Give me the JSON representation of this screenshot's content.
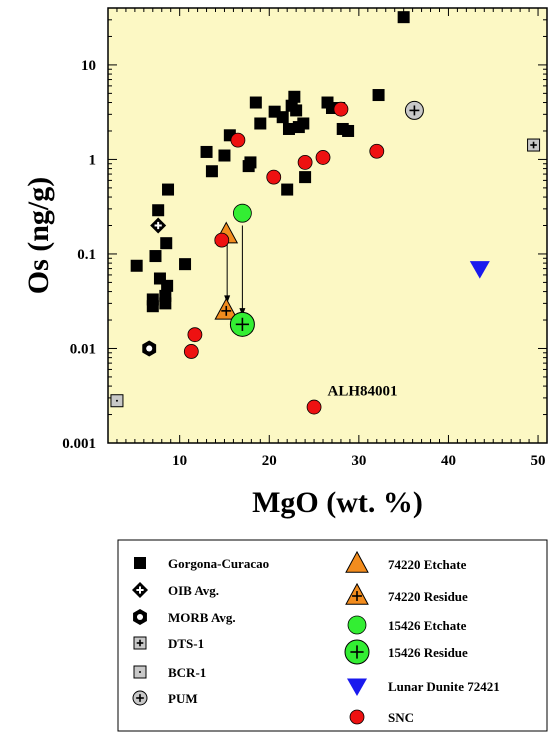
{
  "chart_data": {
    "type": "scatter",
    "xlabel": "MgO (wt. %)",
    "ylabel": "Os (ng/g)",
    "xlim": [
      2,
      51
    ],
    "ylim": [
      0.001,
      40
    ],
    "y_scale": "log",
    "x_ticks": [
      "10",
      "20",
      "30",
      "40",
      "50"
    ],
    "y_ticks": [
      "0.001",
      "0.01",
      "0.1",
      "1",
      "10"
    ],
    "grid": false,
    "plot_background": "#fcf8c4",
    "annotations": [
      {
        "text": "ALH84001",
        "x": 26.5,
        "y": 0.0032
      }
    ],
    "arrows": [
      {
        "from": [
          15.3,
          0.135
        ],
        "to": [
          15.3,
          0.03
        ]
      },
      {
        "from": [
          17.0,
          0.2
        ],
        "to": [
          17.0,
          0.022
        ]
      }
    ],
    "series": [
      {
        "name": "Gorgona-Curacao",
        "marker": "square",
        "color": "#000000",
        "points": [
          [
            5.2,
            0.075
          ],
          [
            7.0,
            0.033
          ],
          [
            7.0,
            0.028
          ],
          [
            7.3,
            0.095
          ],
          [
            7.6,
            0.29
          ],
          [
            7.8,
            0.055
          ],
          [
            8.4,
            0.03
          ],
          [
            8.4,
            0.036
          ],
          [
            8.6,
            0.046
          ],
          [
            8.5,
            0.13
          ],
          [
            8.7,
            0.48
          ],
          [
            10.6,
            0.078
          ],
          [
            13.0,
            1.2
          ],
          [
            13.6,
            0.75
          ],
          [
            15.0,
            1.1
          ],
          [
            15.6,
            1.8
          ],
          [
            17.7,
            0.85
          ],
          [
            17.9,
            0.93
          ],
          [
            18.5,
            4.0
          ],
          [
            19.0,
            2.4
          ],
          [
            20.6,
            3.2
          ],
          [
            21.5,
            2.8
          ],
          [
            22.0,
            0.48
          ],
          [
            22.2,
            2.1
          ],
          [
            22.5,
            3.7
          ],
          [
            22.8,
            4.6
          ],
          [
            23.0,
            3.3
          ],
          [
            23.3,
            2.2
          ],
          [
            23.8,
            2.4
          ],
          [
            24.0,
            0.65
          ],
          [
            26.5,
            4.0
          ],
          [
            27.0,
            3.5
          ],
          [
            27.8,
            3.5
          ],
          [
            28.2,
            2.1
          ],
          [
            28.8,
            2.0
          ],
          [
            32.2,
            4.8
          ],
          [
            35.0,
            32.0
          ]
        ]
      },
      {
        "name": "OIB Avg.",
        "marker": "diamond-cross",
        "color": "#000000",
        "points": [
          [
            7.6,
            0.2
          ]
        ]
      },
      {
        "name": "MORB Avg.",
        "marker": "hexagon",
        "color": "#000000",
        "points": [
          [
            6.6,
            0.01
          ]
        ]
      },
      {
        "name": "DTS-1",
        "marker": "square-plus",
        "color": "#c8c8c8",
        "points": [
          [
            49.5,
            1.42
          ]
        ]
      },
      {
        "name": "BCR-1",
        "marker": "square-dot",
        "color": "#c8c8c8",
        "points": [
          [
            3.0,
            0.0028
          ]
        ]
      },
      {
        "name": "PUM",
        "marker": "circle-plus",
        "color": "#c8c8c8",
        "points": [
          [
            36.2,
            3.3
          ]
        ]
      },
      {
        "name": "74220 Etchate",
        "marker": "triangle",
        "color": "#f28c1e",
        "points": [
          [
            15.2,
            0.16
          ]
        ]
      },
      {
        "name": "74220 Residue",
        "marker": "triangle-plus",
        "color": "#f28c1e",
        "points": [
          [
            15.2,
            0.025
          ]
        ]
      },
      {
        "name": "15426 Etchate",
        "marker": "circle",
        "color": "#33ee33",
        "points": [
          [
            17.0,
            0.27
          ]
        ]
      },
      {
        "name": "15426 Residue",
        "marker": "circle-plus",
        "color": "#33ee33",
        "points": [
          [
            17.0,
            0.018
          ]
        ]
      },
      {
        "name": "Lunar Dunite 72421",
        "marker": "triangle-down",
        "color": "#1a1aee",
        "points": [
          [
            43.5,
            0.07
          ]
        ]
      },
      {
        "name": "SNC",
        "marker": "circle",
        "color": "#ee1111",
        "points": [
          [
            11.3,
            0.0093
          ],
          [
            11.7,
            0.014
          ],
          [
            14.7,
            0.14
          ],
          [
            16.5,
            1.6
          ],
          [
            20.5,
            0.65
          ],
          [
            24.0,
            0.93
          ],
          [
            26.0,
            1.05
          ],
          [
            25.0,
            0.0024
          ],
          [
            28.0,
            3.4
          ],
          [
            32.0,
            1.22
          ]
        ]
      }
    ]
  }
}
